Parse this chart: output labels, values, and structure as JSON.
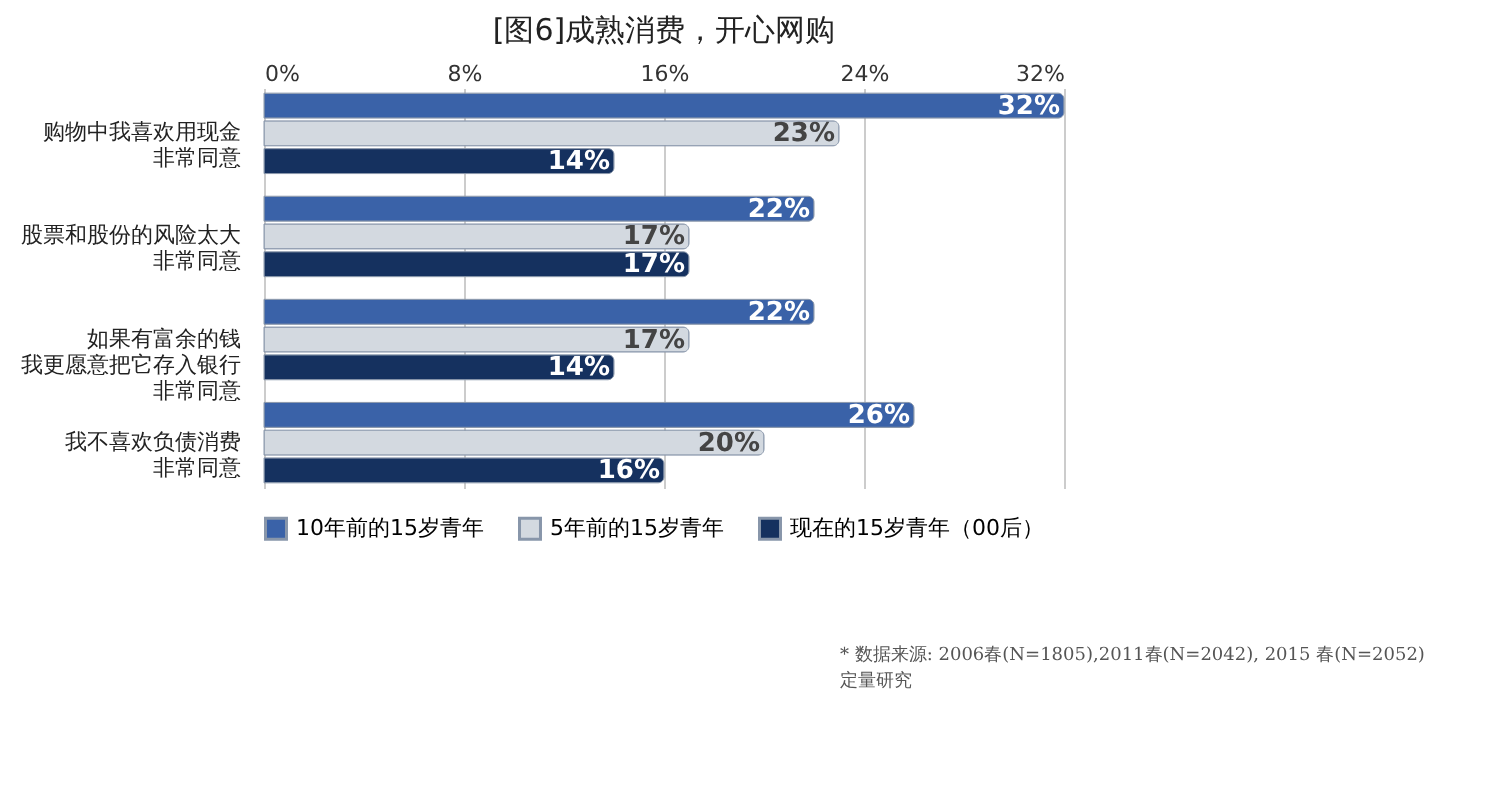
{
  "chart_data": {
    "type": "bar",
    "orientation": "horizontal",
    "title": "[图6]成熟消费，开心网购",
    "categories": [
      "购物中我喜欢用现金非常同意",
      "股票和股份的风险太大非常同意",
      "如果有富余的钱我更愿意把它存入银行非常同意",
      "我不喜欢负债消费非常同意"
    ],
    "series": [
      {
        "name": "10年前的15岁青年",
        "color": "#3a62a8",
        "values": [
          32,
          22,
          22,
          26
        ],
        "value_labels": [
          "32%",
          "22%",
          "22%",
          "26%"
        ]
      },
      {
        "name": "5年前的15岁青年",
        "color": "#d3d9e0",
        "values": [
          23,
          17,
          17,
          20
        ],
        "value_labels": [
          "23%",
          "17%",
          "17%",
          "20%"
        ]
      },
      {
        "name": "现在的15岁青年（00后）",
        "color": "#15315f",
        "values": [
          14,
          17,
          14,
          16
        ],
        "value_labels": [
          "14%",
          "17%",
          "14%",
          "16%"
        ]
      }
    ],
    "xlim": [
      0,
      32
    ],
    "xticks": [
      {
        "value": 0,
        "label": "0%"
      },
      {
        "value": 8,
        "label": "8%"
      },
      {
        "value": 16,
        "label": "16%"
      },
      {
        "value": 24,
        "label": "24%"
      },
      {
        "value": 32,
        "label": "32%"
      }
    ],
    "grid": "x",
    "legend": "bottom",
    "annotations": [
      "* 数据来源: 2006春(N=1805),2011春(N=2042), 2015 春(N=2052) 定量研究"
    ]
  }
}
